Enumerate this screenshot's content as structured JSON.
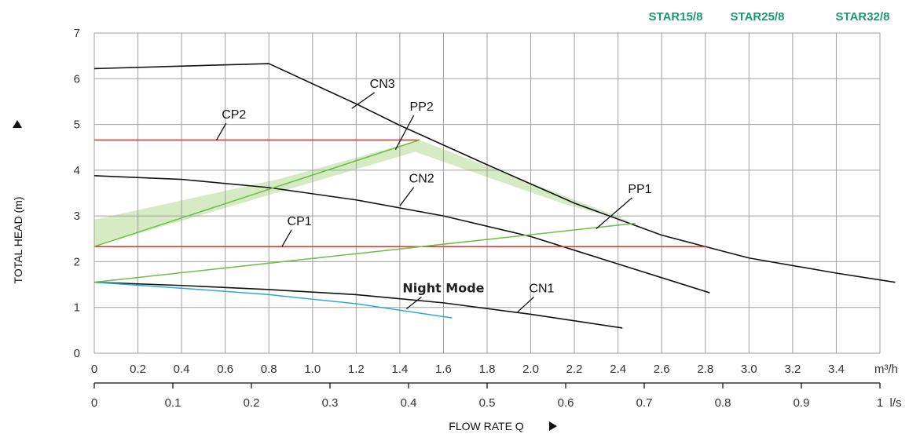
{
  "chart_data": {
    "type": "line",
    "models": [
      "STAR15/8",
      "STAR25/8",
      "STAR32/8"
    ],
    "ylabel": "TOTAL HEAD (m)",
    "xlabel": "FLOW RATE Q",
    "x_primary_unit": "m³/h",
    "x_secondary_unit": "l/s",
    "xlim": [
      0,
      3.6
    ],
    "ylim": [
      0,
      7
    ],
    "x_ticks": [
      "0",
      "0.2",
      "0.4",
      "0.6",
      "0.8",
      "1.0",
      "1.2",
      "1.4",
      "1.6",
      "1.8",
      "2.0",
      "2.2",
      "2.4",
      "2.6",
      "2.8",
      "3.0",
      "3.2",
      "3.4"
    ],
    "x_tick_values": [
      0,
      0.2,
      0.4,
      0.6,
      0.8,
      1.0,
      1.2,
      1.4,
      1.6,
      1.8,
      2.0,
      2.2,
      2.4,
      2.6,
      2.8,
      3.0,
      3.2,
      3.4
    ],
    "y_ticks": [
      "0",
      "1",
      "2",
      "3",
      "4",
      "5",
      "6",
      "7"
    ],
    "y_tick_values": [
      0,
      1,
      2,
      3,
      4,
      5,
      6,
      7
    ],
    "ls_ticks": [
      "0",
      "0.1",
      "0.2",
      "0.3",
      "0.4",
      "0.5",
      "0.6",
      "0.7",
      "0.8",
      "0.9",
      "1"
    ],
    "ls_tick_values": [
      0,
      0.1,
      0.2,
      0.3,
      0.4,
      0.5,
      0.6,
      0.7,
      0.8,
      0.9,
      1.0
    ],
    "grid": true,
    "colors": {
      "curve": "#111111",
      "constant_pressure": "#e8302a",
      "proportional_pressure": "#6abf45",
      "night_mode": "#2ea6dc",
      "area_fill": "#c8e3b0",
      "grid": "#a0a0a0",
      "model_label": "#1a9a6c"
    },
    "area": {
      "x": [
        0,
        0,
        0.85,
        1.49,
        2.48,
        2.16,
        1.47,
        0
      ],
      "y": [
        1.55,
        2.92,
        3.81,
        4.66,
        2.84,
        3.25,
        4.4,
        2.33
      ]
    },
    "series": [
      {
        "name": "CN3",
        "kind": "curve",
        "x": [
          0,
          0.8,
          1.2,
          1.4,
          1.8,
          2.2,
          2.6,
          3.0,
          3.4,
          3.67
        ],
        "y": [
          6.22,
          6.33,
          5.45,
          4.98,
          4.12,
          3.28,
          2.58,
          2.08,
          1.75,
          1.55
        ],
        "label_pos": [
          1.32,
          5.8
        ],
        "leader_to": [
          1.18,
          5.35
        ]
      },
      {
        "name": "CN2",
        "kind": "curve",
        "x": [
          0,
          0.4,
          0.8,
          1.2,
          1.6,
          2.0,
          2.4,
          2.82
        ],
        "y": [
          3.88,
          3.8,
          3.62,
          3.35,
          3.0,
          2.55,
          1.95,
          1.32
        ],
        "label_pos": [
          1.5,
          3.73
        ],
        "leader_to": [
          1.4,
          3.22
        ]
      },
      {
        "name": "CN1",
        "kind": "curve",
        "x": [
          0,
          0.4,
          0.8,
          1.2,
          1.6,
          2.0,
          2.42
        ],
        "y": [
          1.55,
          1.48,
          1.39,
          1.28,
          1.1,
          0.85,
          0.55
        ],
        "label_pos": [
          2.05,
          1.33
        ],
        "leader_to": [
          1.94,
          0.9
        ]
      },
      {
        "name": "Night Mode",
        "kind": "night",
        "x": [
          0,
          0.4,
          0.8,
          1.2,
          1.64
        ],
        "y": [
          1.55,
          1.42,
          1.28,
          1.08,
          0.77
        ],
        "label_pos": [
          1.6,
          1.33
        ],
        "leader_to": [
          1.43,
          0.97
        ]
      },
      {
        "name": "CP2",
        "kind": "constant",
        "x": [
          0,
          1.49
        ],
        "y": [
          4.66,
          4.66
        ],
        "label_pos": [
          0.64,
          5.13
        ],
        "leader_to": [
          0.56,
          4.66
        ]
      },
      {
        "name": "CP1",
        "kind": "constant",
        "x": [
          0,
          2.8
        ],
        "y": [
          2.33,
          2.33
        ],
        "label_pos": [
          0.94,
          2.8
        ],
        "leader_to": [
          0.86,
          2.33
        ]
      },
      {
        "name": "PP2",
        "kind": "proportional",
        "x": [
          0,
          1.49
        ],
        "y": [
          2.33,
          4.66
        ],
        "label_pos": [
          1.5,
          5.3
        ],
        "leader_to": [
          1.38,
          4.45
        ]
      },
      {
        "name": "PP1",
        "kind": "proportional",
        "x": [
          0,
          2.48
        ],
        "y": [
          1.55,
          2.84
        ],
        "label_pos": [
          2.5,
          3.5
        ],
        "leader_to": [
          2.3,
          2.72
        ]
      }
    ]
  }
}
